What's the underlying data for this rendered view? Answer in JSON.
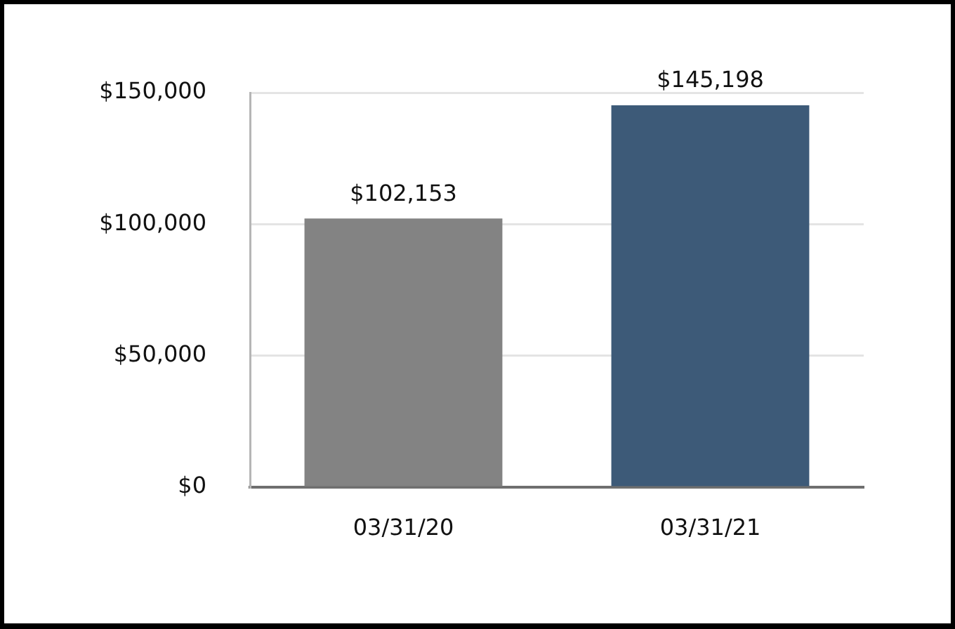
{
  "chart_data": {
    "type": "bar",
    "categories": [
      "03/31/20",
      "03/31/21"
    ],
    "values": [
      102153,
      145198
    ],
    "colors": [
      "#838383",
      "#3d5a78"
    ],
    "value_labels": [
      "$102,153",
      "$145,198"
    ],
    "ylim": [
      0,
      150000
    ],
    "yticks": [
      {
        "value": 0,
        "label": "$0"
      },
      {
        "value": 50000,
        "label": "$50,000"
      },
      {
        "value": 100000,
        "label": "$100,000"
      },
      {
        "value": 150000,
        "label": "$150,000"
      }
    ],
    "grid": "y"
  }
}
